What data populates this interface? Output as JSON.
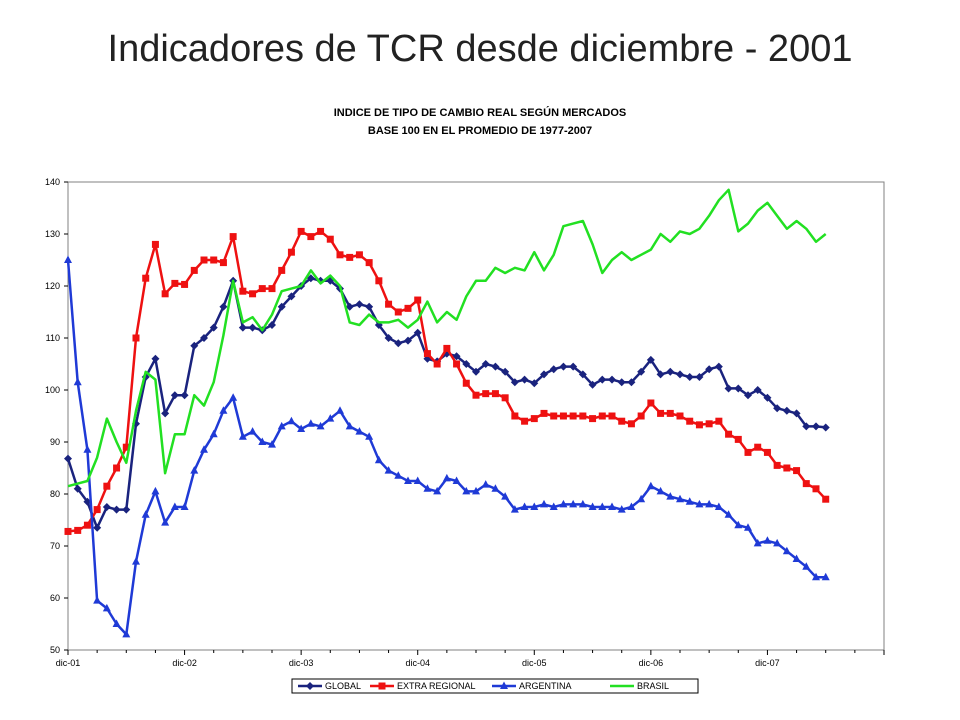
{
  "slide_title": "Indicadores de TCR desde diciembre - 2001",
  "chart_data": {
    "type": "line",
    "title": "INDICE DE TIPO DE CAMBIO REAL SEGÚN MERCADOS",
    "subtitle": "BASE 100 EN EL PROMEDIO DE 1977-2007",
    "xlabel": "",
    "ylabel": "",
    "ylim": [
      50,
      140
    ],
    "yticks": [
      "50",
      "60",
      "70",
      "80",
      "90",
      "100",
      "110",
      "120",
      "130",
      "140"
    ],
    "xticks": [
      "dic-01",
      "dic-02",
      "dic-03",
      "dic-04",
      "dic-05",
      "dic-06",
      "dic-07"
    ],
    "x_start": "dic-01",
    "grid": false,
    "legend_position": "bottom",
    "series": [
      {
        "name": "GLOBAL",
        "color": "#1a237e",
        "marker": "diamond",
        "values": [
          86.8,
          81,
          78.5,
          73.5,
          77.5,
          77,
          77,
          93.5,
          102.5,
          106,
          95.5,
          99,
          99,
          108.5,
          110,
          112,
          116,
          121,
          112,
          112,
          111.5,
          112.5,
          116,
          118,
          120,
          121.5,
          121,
          121,
          119.5,
          116,
          116.5,
          116,
          112.5,
          110,
          109,
          109.5,
          111,
          106,
          105.5,
          107,
          106.5,
          105,
          103.5,
          105,
          104.5,
          103.5,
          101.5,
          102,
          101.3,
          103,
          104,
          104.5,
          104.5,
          103,
          101,
          102,
          102,
          101.5,
          101.5,
          103.5,
          105.8,
          103,
          103.5,
          103,
          102.5,
          102.5,
          104,
          104.5,
          100.3,
          100.3,
          99,
          100,
          98.5,
          96.5,
          96,
          95.5,
          93,
          93,
          92.8
        ]
      },
      {
        "name": "EXTRA REGIONAL",
        "color": "#ee1111",
        "marker": "square",
        "values": [
          72.8,
          73,
          74,
          77,
          81.5,
          85,
          89,
          110,
          121.5,
          128,
          118.5,
          120.5,
          120.3,
          123,
          125,
          125,
          124.5,
          129.5,
          119,
          118.5,
          119.5,
          119.5,
          123,
          126.5,
          130.5,
          129.5,
          130.5,
          129,
          126,
          125.5,
          126,
          124.5,
          121,
          116.5,
          115,
          115.7,
          117.3,
          107,
          105,
          108,
          105,
          101.3,
          99,
          99.3,
          99.3,
          98.5,
          95,
          94,
          94.5,
          95.5,
          95,
          95,
          95,
          95,
          94.5,
          95,
          95,
          94,
          93.5,
          95,
          97.5,
          95.5,
          95.5,
          95,
          94,
          93.3,
          93.5,
          94,
          91.5,
          90.5,
          88,
          89,
          88,
          85.5,
          85,
          84.5,
          82,
          81,
          79
        ]
      },
      {
        "name": "ARGENTINA",
        "color": "#1f3ad6",
        "marker": "triangle",
        "values": [
          125,
          101.5,
          88.5,
          59.5,
          58,
          55,
          53,
          67,
          76,
          80.5,
          74.5,
          77.5,
          77.5,
          84.5,
          88.5,
          91.5,
          96,
          98.5,
          91,
          92,
          90,
          89.5,
          93,
          94,
          92.5,
          93.5,
          93,
          94.5,
          96,
          93,
          92,
          91,
          86.5,
          84.5,
          83.5,
          82.5,
          82.5,
          81,
          80.5,
          83,
          82.5,
          80.5,
          80.5,
          81.8,
          81,
          79.5,
          77,
          77.5,
          77.5,
          78,
          77.5,
          78,
          78,
          78,
          77.5,
          77.5,
          77.5,
          77,
          77.5,
          79,
          81.5,
          80.5,
          79.5,
          79,
          78.5,
          78,
          78,
          77.5,
          76,
          74,
          73.5,
          70.5,
          71,
          70.5,
          69,
          67.5,
          66,
          64,
          64
        ]
      },
      {
        "name": "BRASIL",
        "color": "#22e022",
        "marker": "none",
        "values": [
          81.5,
          82,
          82.5,
          87,
          94.5,
          90,
          86,
          96,
          103.5,
          102,
          84,
          91.5,
          91.5,
          99,
          97,
          101.5,
          110.5,
          121,
          113,
          114,
          111.5,
          114.5,
          119,
          119.5,
          120,
          123,
          120.5,
          122,
          120,
          113,
          112.5,
          114.5,
          113,
          113,
          113.5,
          112,
          113.5,
          117,
          113,
          115,
          113.5,
          118,
          121,
          121,
          123.5,
          122.5,
          123.5,
          123,
          126.5,
          123,
          126,
          131.5,
          132,
          132.5,
          128,
          122.5,
          125,
          126.5,
          125,
          126,
          127,
          130,
          128.5,
          130.5,
          130,
          131,
          133.5,
          136.5,
          138.5,
          130.5,
          132,
          134.5,
          136,
          133.5,
          131,
          132.5,
          131,
          128.5,
          130
        ]
      }
    ]
  }
}
